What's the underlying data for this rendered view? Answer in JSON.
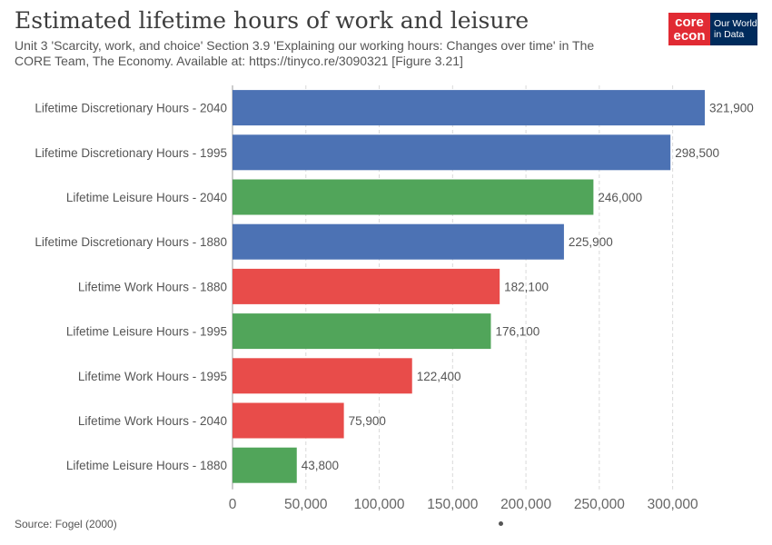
{
  "header": {
    "title": "Estimated lifetime hours of work and leisure",
    "subtitle": "Unit 3 'Scarcity, work, and choice' Section 3.9 'Explaining our working hours: Changes over time' in The CORE Team, The Economy. Available at: https://tinyco.re/3090321 [Figure 3.21]"
  },
  "logo": {
    "core_line1": "core",
    "core_line2": "econ",
    "owid_text": "Our World in Data",
    "core_color": "#e12a33",
    "owid_color": "#002b5c"
  },
  "footer": {
    "source": "Source: Fogel (2000)"
  },
  "chart_data": {
    "type": "bar",
    "orientation": "horizontal",
    "categories": [
      "Lifetime Discretionary Hours - 2040",
      "Lifetime Discretionary Hours - 1995",
      "Lifetime Leisure Hours - 2040",
      "Lifetime Discretionary Hours - 1880",
      "Lifetime Work Hours - 1880",
      "Lifetime Leisure Hours - 1995",
      "Lifetime Work Hours - 1995",
      "Lifetime Work Hours - 2040",
      "Lifetime Leisure Hours - 1880"
    ],
    "values": [
      321900,
      298500,
      246000,
      225900,
      182100,
      176100,
      122400,
      75900,
      43800
    ],
    "value_labels": [
      "321,900",
      "298,500",
      "246,000",
      "225,900",
      "182,100",
      "176,100",
      "122,400",
      "75,900",
      "43,800"
    ],
    "bar_colors": [
      "#4c72b4",
      "#4c72b4",
      "#51a55a",
      "#4c72b4",
      "#e84c4a",
      "#51a55a",
      "#e84c4a",
      "#e84c4a",
      "#51a55a"
    ],
    "xlim": [
      0,
      321900
    ],
    "xticks": [
      0,
      50000,
      100000,
      150000,
      200000,
      250000,
      300000
    ],
    "xtick_labels": [
      "0",
      "50,000",
      "100,000",
      "150,000",
      "200,000",
      "250,000",
      "300,000"
    ],
    "grid": "vertical dashed"
  }
}
